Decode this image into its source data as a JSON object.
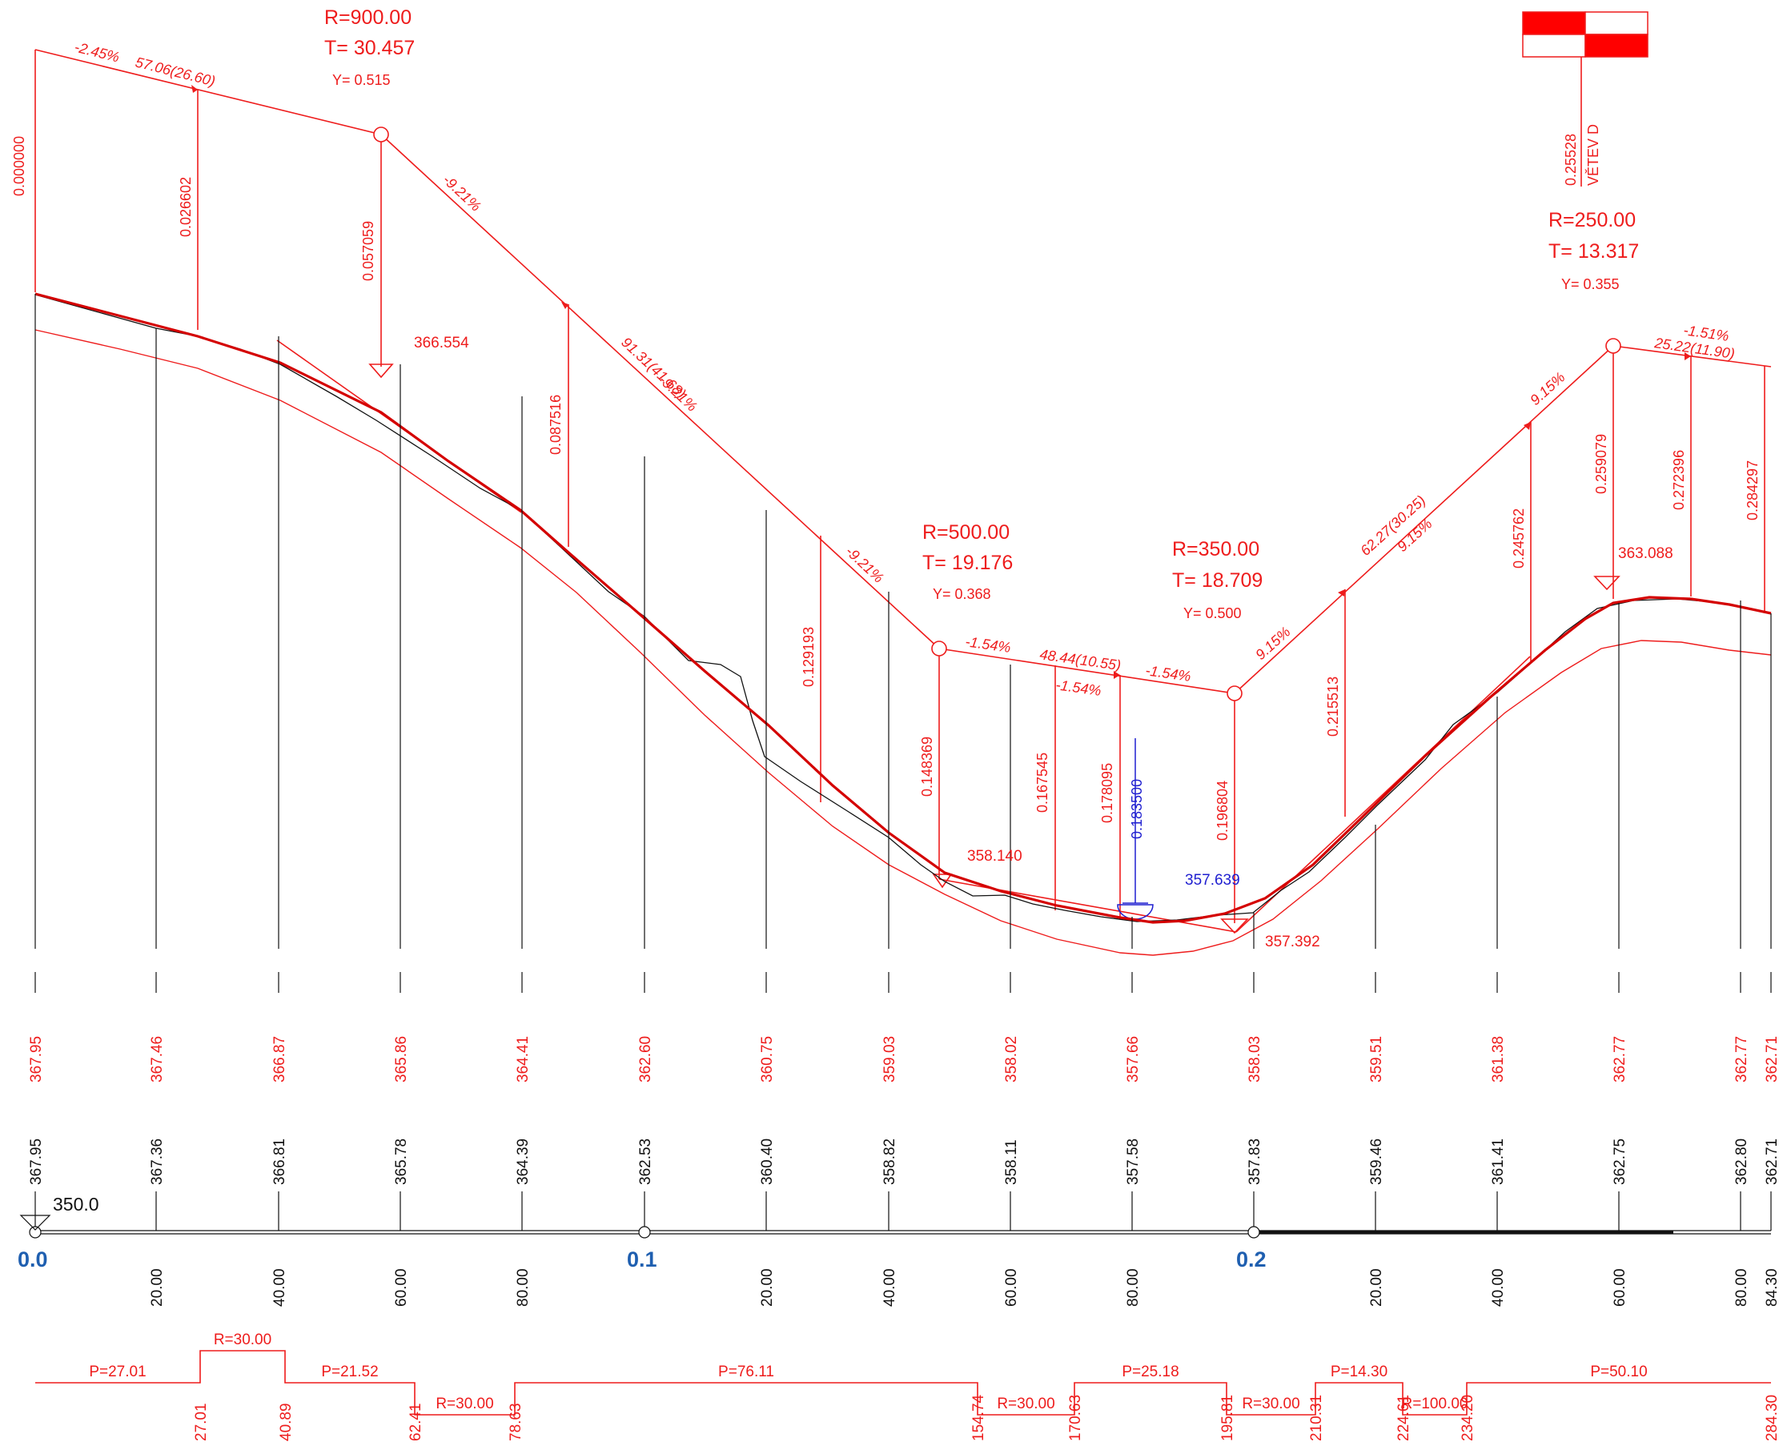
{
  "colors": {
    "design": "#ee1c1c",
    "terrain": "#111111",
    "water": "#1f1fd0",
    "chainage": "#1f5fb0"
  },
  "datum": "350.0",
  "stations": [
    {
      "label": "0.0",
      "design": "367.95",
      "terrain": "367.95",
      "major": true
    },
    {
      "label": "20.00",
      "design": "367.46",
      "terrain": "367.36"
    },
    {
      "label": "40.00",
      "design": "366.87",
      "terrain": "366.81"
    },
    {
      "label": "60.00",
      "design": "365.86",
      "terrain": "365.78"
    },
    {
      "label": "80.00",
      "design": "364.41",
      "terrain": "364.39"
    },
    {
      "label": "0.1",
      "design": "362.60",
      "terrain": "362.53",
      "major": true
    },
    {
      "label": "20.00",
      "design": "360.75",
      "terrain": "360.40"
    },
    {
      "label": "40.00",
      "design": "359.03",
      "terrain": "358.82"
    },
    {
      "label": "60.00",
      "design": "358.02",
      "terrain": "358.11"
    },
    {
      "label": "80.00",
      "design": "357.66",
      "terrain": "357.58"
    },
    {
      "label": "0.2",
      "design": "358.03",
      "terrain": "357.83",
      "major": true
    },
    {
      "label": "20.00",
      "design": "359.51",
      "terrain": "359.46"
    },
    {
      "label": "40.00",
      "design": "361.38",
      "terrain": "361.41"
    },
    {
      "label": "60.00",
      "design": "362.77",
      "terrain": "362.75"
    },
    {
      "label": "80.00",
      "design": "362.77",
      "terrain": "362.80"
    },
    {
      "label": "84.30",
      "design": "362.71",
      "terrain": "362.71"
    }
  ],
  "vertical_curves": [
    {
      "R": "R=900.00",
      "T": "T= 30.457",
      "Y": "Y= 0.515",
      "level": "366.554"
    },
    {
      "R": "R=500.00",
      "T": "T= 19.176",
      "Y": "Y= 0.368",
      "level": "358.140"
    },
    {
      "R": "R=350.00",
      "T": "T= 18.709",
      "Y": "Y= 0.500",
      "level": "357.392"
    },
    {
      "R": "R=250.00",
      "T": "T= 13.317",
      "Y": "Y= 0.355",
      "level": "363.088"
    }
  ],
  "low_point": {
    "level": "357.639",
    "value": "0.183500"
  },
  "grades": [
    "-2.45%",
    "57.06(26.60)",
    "-9.21%",
    "91.31(41.68)",
    "-9.21%",
    "-9.21%",
    "-1.54%",
    "48.44(10.55)",
    "-1.54%",
    "-1.54%",
    "9.15%",
    "62.27(30.25)",
    "9.15%",
    "9.15%",
    "-1.51%",
    "25.22(11.90)"
  ],
  "offsets": [
    "0.000000",
    "0.026602",
    "0.057059",
    "0.087516",
    "0.129193",
    "0.148369",
    "0.167545",
    "0.178095",
    "0.196804",
    "0.215513",
    "0.245762",
    "0.259079",
    "0.272396",
    "0.284297"
  ],
  "branch": {
    "label": "VĚTEV D",
    "value": "0.25528"
  },
  "alignment": {
    "segments": [
      {
        "label": "P=27.01",
        "level": "up"
      },
      {
        "label": "R=30.00",
        "level": "top"
      },
      {
        "label": "P=21.52",
        "level": "up"
      },
      {
        "label": "R=30.00",
        "level": "down"
      },
      {
        "label": "P=76.11",
        "level": "up"
      },
      {
        "label": "R=30.00",
        "level": "down"
      },
      {
        "label": "P=25.18",
        "level": "up"
      },
      {
        "label": "R=30.00",
        "level": "down"
      },
      {
        "label": "P=14.30",
        "level": "up"
      },
      {
        "label": "R=100.00",
        "level": "down"
      },
      {
        "label": "P=50.10",
        "level": "up"
      }
    ],
    "breaks": [
      "27.01",
      "40.89",
      "62.41",
      "78.63",
      "154.74",
      "170.63",
      "195.81",
      "210.31",
      "224.61",
      "234.20",
      "284.30"
    ]
  }
}
